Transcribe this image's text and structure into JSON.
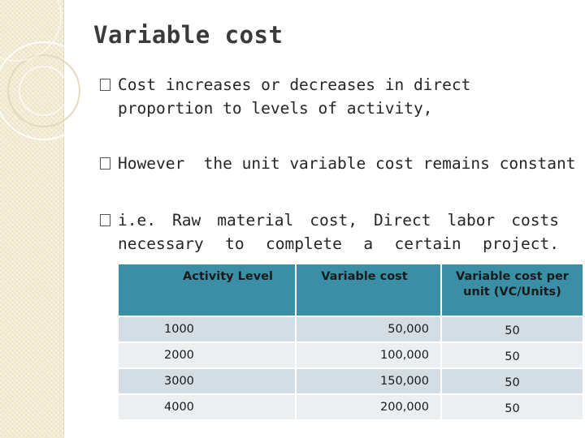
{
  "slide": {
    "title": "Variable cost",
    "bullets": [
      {
        "icon": "checkbox-bullet-icon",
        "text": "Cost increases or decreases in direct proportion to levels of activity,"
      },
      {
        "icon": "checkbox-bullet-icon",
        "text": "However  the unit variable cost remains constant"
      },
      {
        "icon": "checkbox-bullet-icon",
        "text": "i.e. Raw material cost, Direct labor costs necessary to complete a certain project."
      }
    ]
  },
  "table": {
    "headers": [
      "Activity Level",
      "Variable cost",
      "Variable cost per unit (VC/Units)"
    ],
    "rows": [
      [
        "1000",
        "50,000",
        "50"
      ],
      [
        "2000",
        "100,000",
        "50"
      ],
      [
        "3000",
        "150,000",
        "50"
      ],
      [
        "4000",
        "200,000",
        "50"
      ]
    ]
  },
  "colors": {
    "header_bg": "#3a8fa6",
    "row_odd_bg": "#d3dde3",
    "row_even_bg": "#ebeff2",
    "side_strip": "#f3e9cf"
  }
}
